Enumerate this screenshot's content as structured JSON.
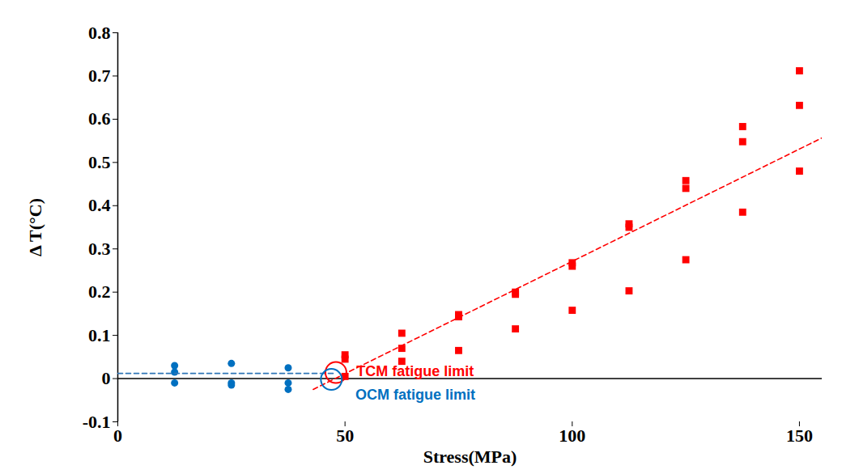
{
  "chart_data": {
    "type": "scatter",
    "x_label": "Stress(MPa)",
    "y_label": "Δ T(°C)",
    "xlim": [
      0,
      155
    ],
    "xticks": [
      0,
      50,
      100,
      150
    ],
    "ylim": [
      -0.1,
      0.8
    ],
    "yticks": [
      -0.1,
      0,
      0.1,
      0.2,
      0.3,
      0.4,
      0.5,
      0.6,
      0.7,
      0.8
    ],
    "grid": false,
    "series": [
      {
        "type": "scatter",
        "color": "#0070c0",
        "marker": "circle",
        "x": [
          12.5,
          12.5,
          12.5,
          25,
          25,
          25,
          37.5,
          37.5,
          37.5
        ],
        "y": [
          0.03,
          0.015,
          -0.01,
          0.035,
          -0.01,
          -0.015,
          0.025,
          -0.01,
          -0.025
        ]
      },
      {
        "type": "scatter",
        "color": "#ff0000",
        "marker": "square",
        "x": [
          50,
          50,
          50,
          62.5,
          62.5,
          62.5,
          75,
          75,
          75,
          87.5,
          87.5,
          87.5,
          100,
          100,
          100,
          112.5,
          112.5,
          112.5,
          125,
          125,
          125,
          137.5,
          137.5,
          137.5,
          150,
          150,
          150
        ],
        "y": [
          0.055,
          0.045,
          0.005,
          0.105,
          0.07,
          0.04,
          0.148,
          0.143,
          0.065,
          0.2,
          0.195,
          0.115,
          0.268,
          0.26,
          0.158,
          0.358,
          0.35,
          0.203,
          0.458,
          0.44,
          0.275,
          0.583,
          0.548,
          0.385,
          0.712,
          0.632,
          0.48
        ]
      },
      {
        "type": "line",
        "color": "#ff0000",
        "line_style": "dashed",
        "x": [
          43,
          155
        ],
        "y": [
          -0.025,
          0.557
        ]
      },
      {
        "type": "line",
        "color": "#2e75b6",
        "line_style": "dashed",
        "x": [
          0,
          48
        ],
        "y": [
          0.012,
          0.012
        ]
      }
    ],
    "annotations": [
      {
        "text": "TCM fatigue limit",
        "x": 52.5,
        "y": 0.016,
        "circle": [
          48,
          0.014
        ],
        "color": "#ff0000"
      },
      {
        "text": "OCM fatigue limit",
        "x": 52.3,
        "y": -0.038,
        "circle": [
          47,
          -0.002
        ],
        "color": "#0070c0"
      }
    ]
  }
}
